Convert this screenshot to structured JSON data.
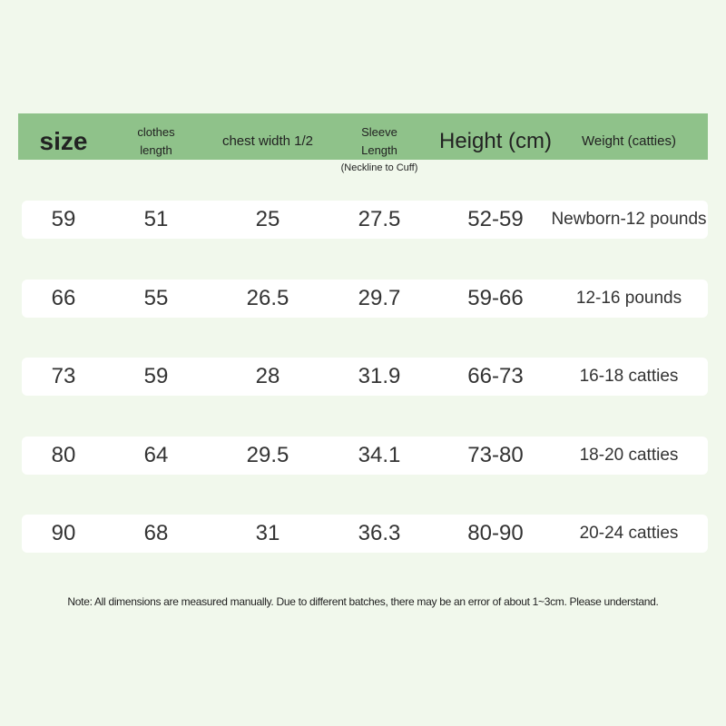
{
  "table": {
    "header": [
      "size",
      "clothes length",
      "chest width 1/2",
      "Sleeve Length",
      "Height (cm)",
      "Weight (catties)"
    ],
    "sleeve_note": "(Neckline to Cuff)",
    "rows": [
      [
        "59",
        "51",
        "25",
        "27.5",
        "52-59",
        "Newborn-12 pounds"
      ],
      [
        "66",
        "55",
        "26.5",
        "29.7",
        "59-66",
        "12-16 pounds"
      ],
      [
        "73",
        "59",
        "28",
        "31.9",
        "66-73",
        "16-18 catties"
      ],
      [
        "80",
        "64",
        "29.5",
        "34.1",
        "73-80",
        "18-20 catties"
      ],
      [
        "90",
        "68",
        "31",
        "36.3",
        "80-90",
        "20-24 catties"
      ]
    ]
  },
  "note": "Note: All dimensions are measured manually. Due to different batches, there may be an error of about 1~3cm. Please understand."
}
